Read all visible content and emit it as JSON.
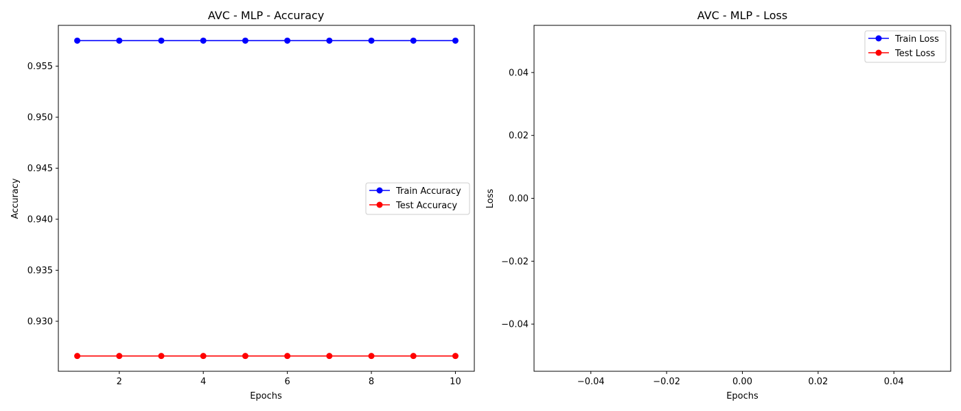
{
  "chart_data": [
    {
      "type": "line",
      "title": "AVC - MLP - Accuracy",
      "xlabel": "Epochs",
      "ylabel": "Accuracy",
      "x": [
        1,
        2,
        3,
        4,
        5,
        6,
        7,
        8,
        9,
        10
      ],
      "xlim": [
        0.55,
        10.45
      ],
      "ylim": [
        0.9251,
        0.959
      ],
      "xticks": [
        2,
        4,
        6,
        8,
        10
      ],
      "xtick_labels": [
        "2",
        "4",
        "6",
        "8",
        "10"
      ],
      "yticks": [
        0.93,
        0.935,
        0.94,
        0.945,
        0.95,
        0.955
      ],
      "ytick_labels": [
        "0.930",
        "0.935",
        "0.940",
        "0.945",
        "0.950",
        "0.955"
      ],
      "legend_position": "center-right",
      "grid": false,
      "series": [
        {
          "name": "Train Accuracy",
          "color": "#0000ff",
          "marker": "circle",
          "values": [
            0.9575,
            0.9575,
            0.9575,
            0.9575,
            0.9575,
            0.9575,
            0.9575,
            0.9575,
            0.9575,
            0.9575
          ]
        },
        {
          "name": "Test Accuracy",
          "color": "#ff0000",
          "marker": "circle",
          "values": [
            0.9266,
            0.9266,
            0.9266,
            0.9266,
            0.9266,
            0.9266,
            0.9266,
            0.9266,
            0.9266,
            0.9266
          ]
        }
      ]
    },
    {
      "type": "line",
      "title": "AVC - MLP - Loss",
      "xlabel": "Epochs",
      "ylabel": "Loss",
      "x": [],
      "xlim": [
        -0.055,
        0.055
      ],
      "ylim": [
        -0.055,
        0.055
      ],
      "xticks": [
        -0.04,
        -0.02,
        0.0,
        0.02,
        0.04
      ],
      "xtick_labels": [
        "−0.04",
        "−0.02",
        "0.00",
        "0.02",
        "0.04"
      ],
      "yticks": [
        -0.04,
        -0.02,
        0.0,
        0.02,
        0.04
      ],
      "ytick_labels": [
        "−0.04",
        "−0.02",
        "0.00",
        "0.02",
        "0.04"
      ],
      "legend_position": "top-right",
      "grid": false,
      "series": [
        {
          "name": "Train Loss",
          "color": "#0000ff",
          "marker": "circle",
          "values": []
        },
        {
          "name": "Test Loss",
          "color": "#ff0000",
          "marker": "circle",
          "values": []
        }
      ]
    }
  ]
}
